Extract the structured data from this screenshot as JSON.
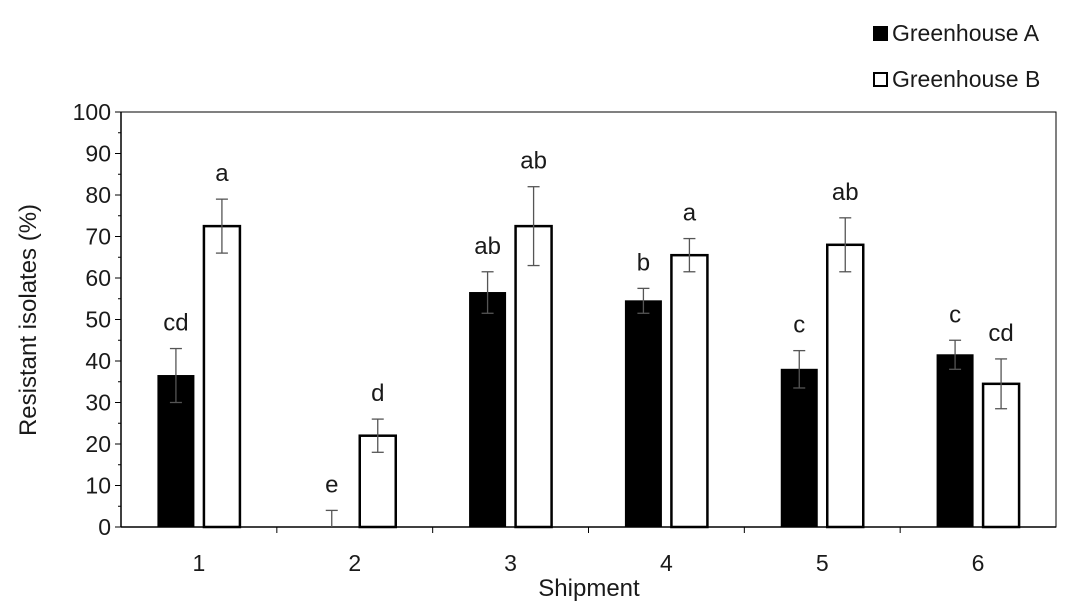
{
  "chart_data": {
    "type": "bar",
    "xlabel": "Shipment",
    "ylabel": "Resistant isolates (%)",
    "ylim": [
      0,
      100
    ],
    "yticks": [
      0,
      10,
      20,
      30,
      40,
      50,
      60,
      70,
      80,
      90,
      100
    ],
    "categories": [
      "1",
      "2",
      "3",
      "4",
      "5",
      "6"
    ],
    "legend_position": "top-right",
    "series": [
      {
        "name": "Greenhouse A",
        "color": "#000000",
        "values": [
          36.5,
          0,
          56.5,
          54.5,
          38,
          41.5
        ],
        "errors": [
          6.5,
          4,
          5,
          3,
          4.5,
          3.5
        ],
        "letters": [
          "cd",
          "e",
          "ab",
          "b",
          "c",
          "c"
        ]
      },
      {
        "name": "Greenhouse B",
        "color": "#ffffff",
        "values": [
          72.5,
          22,
          72.5,
          65.5,
          68,
          34.5
        ],
        "errors": [
          6.5,
          4,
          9.5,
          4,
          6.5,
          6
        ],
        "letters": [
          "a",
          "d",
          "ab",
          "a",
          "ab",
          "cd"
        ]
      }
    ]
  }
}
